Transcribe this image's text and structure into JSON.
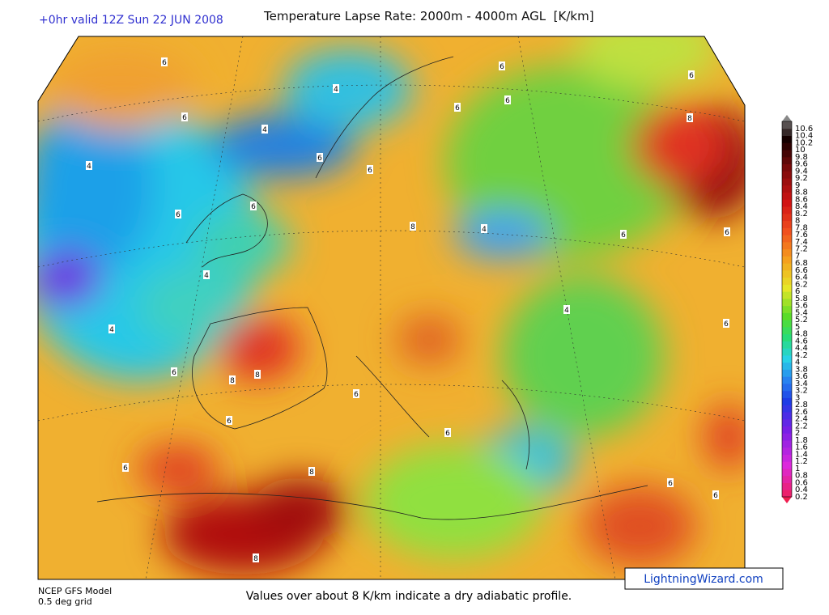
{
  "header": {
    "run": "+0hr valid 12Z Sun 22 JUN 2008",
    "title": "Temperature Lapse Rate: 2000m - 4000m AGL  [K/km]"
  },
  "map": {
    "contour_labels": [
      "6",
      "4",
      "6",
      "4",
      "4",
      "6",
      "6",
      "6",
      "4",
      "4",
      "6",
      "8",
      "8",
      "6",
      "6",
      "8",
      "8",
      "6",
      "6",
      "4",
      "8",
      "4",
      "6",
      "6",
      "8",
      "6",
      "6",
      "6",
      "6",
      "6",
      "6",
      "6",
      "6"
    ]
  },
  "colorbar": {
    "ticks": [
      0.2,
      0.4,
      0.6,
      0.8,
      1,
      1.2,
      1.4,
      1.6,
      1.8,
      2,
      2.2,
      2.4,
      2.6,
      2.8,
      3,
      3.2,
      3.4,
      3.6,
      3.8,
      4,
      4.2,
      4.4,
      4.6,
      4.8,
      5,
      5.2,
      5.4,
      5.6,
      5.8,
      6,
      6.2,
      6.4,
      6.6,
      6.8,
      7,
      7.2,
      7.4,
      7.6,
      7.8,
      8,
      8.2,
      8.4,
      8.6,
      8.8,
      9,
      9.2,
      9.4,
      9.6,
      9.8,
      10,
      10.2,
      10.4,
      10.6
    ]
  },
  "footer": {
    "model": "NCEP GFS Model",
    "grid": "0.5 deg grid",
    "note": "Values over about 8 K/km indicate a dry adiabatic profile.",
    "brand": "LightningWizard.com"
  }
}
